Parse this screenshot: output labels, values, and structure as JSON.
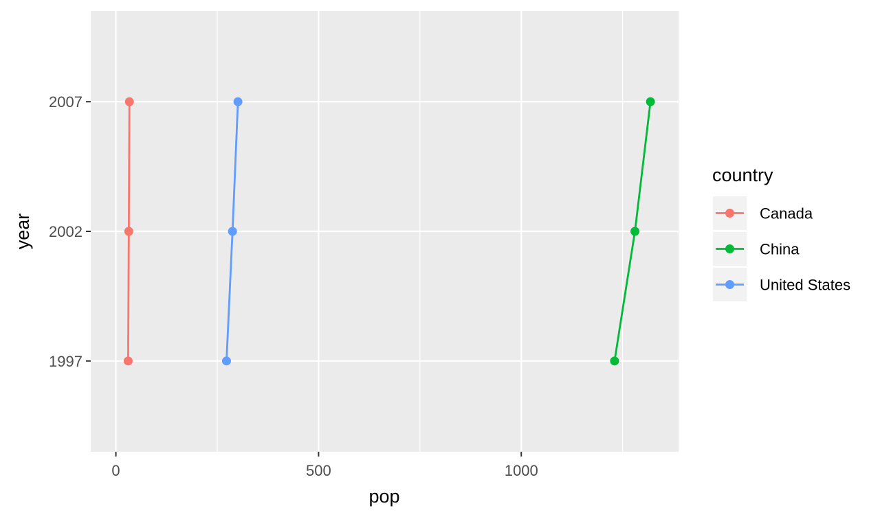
{
  "chart_data": {
    "type": "line",
    "xlabel": "pop",
    "ylabel": "year",
    "xlim": [
      -62,
      1388
    ],
    "ylim": [
      1993.5,
      2010.5
    ],
    "x_ticks": [
      0,
      500,
      1000
    ],
    "x_tick_labels": [
      "0",
      "500",
      "1000"
    ],
    "x_minor_ticks": [
      250,
      750,
      1250
    ],
    "y_ticks": [
      1997,
      2002,
      2007
    ],
    "y_tick_labels": [
      "1997",
      "2002",
      "2007"
    ],
    "grid": true,
    "legend": {
      "title": "country",
      "position": "right"
    },
    "series": [
      {
        "name": "Canada",
        "color": "#F8766D",
        "points": [
          {
            "x": 30.3,
            "y": 1997
          },
          {
            "x": 31.9,
            "y": 2002
          },
          {
            "x": 33.4,
            "y": 2007
          }
        ]
      },
      {
        "name": "China",
        "color": "#00BA38",
        "points": [
          {
            "x": 1230.1,
            "y": 1997
          },
          {
            "x": 1280.4,
            "y": 2002
          },
          {
            "x": 1318.7,
            "y": 2007
          }
        ]
      },
      {
        "name": "United States",
        "color": "#619CFF",
        "points": [
          {
            "x": 272.9,
            "y": 1997
          },
          {
            "x": 287.7,
            "y": 2002
          },
          {
            "x": 301.1,
            "y": 2007
          }
        ]
      }
    ]
  }
}
